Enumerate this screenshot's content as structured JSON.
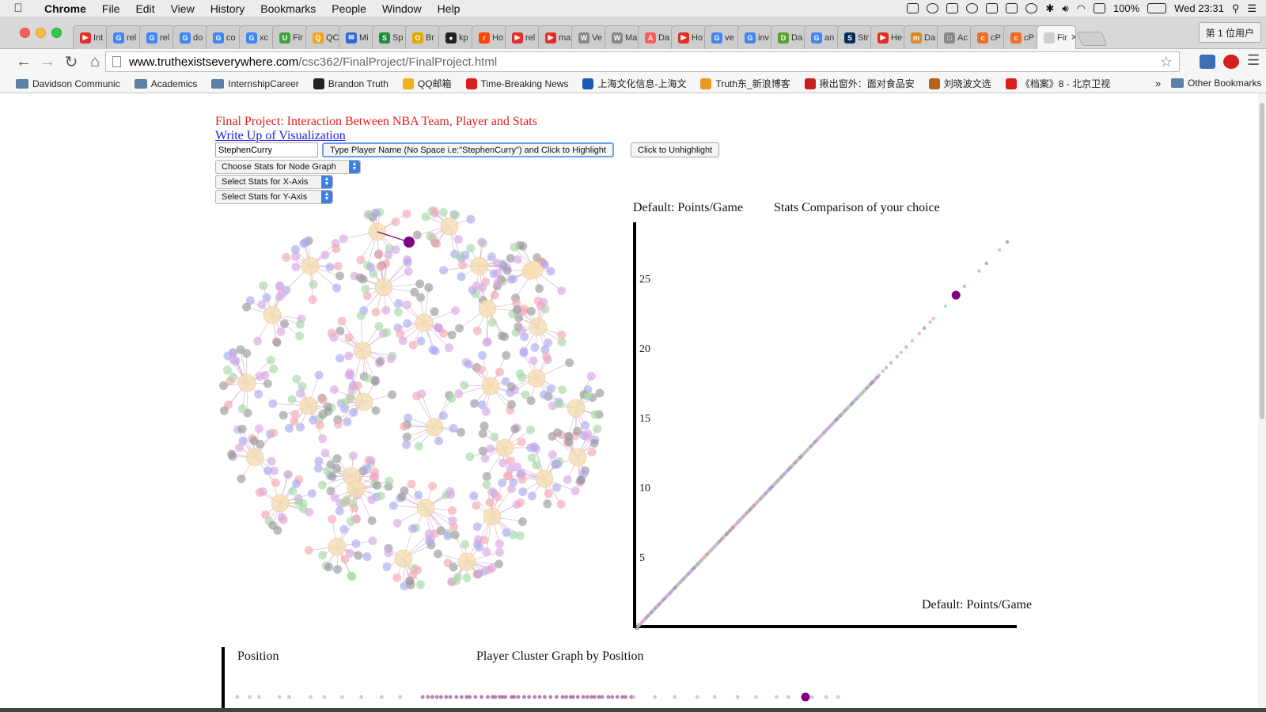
{
  "menubar": {
    "app": "Chrome",
    "items": [
      "File",
      "Edit",
      "View",
      "History",
      "Bookmarks",
      "People",
      "Window",
      "Help"
    ],
    "battery": "100%",
    "clock": "Wed 23:31"
  },
  "tabs": [
    {
      "label": "Int",
      "color": "#e52d27",
      "glyph": "▶"
    },
    {
      "label": "rel",
      "color": "#4285f4",
      "glyph": "G"
    },
    {
      "label": "rel",
      "color": "#4285f4",
      "glyph": "G"
    },
    {
      "label": "do",
      "color": "#4285f4",
      "glyph": "G"
    },
    {
      "label": "co",
      "color": "#4285f4",
      "glyph": "G"
    },
    {
      "label": "xc",
      "color": "#4285f4",
      "glyph": "G"
    },
    {
      "label": "Fir",
      "color": "#3fa33f",
      "glyph": "U"
    },
    {
      "label": "QC",
      "color": "#f2a51a",
      "glyph": "Q"
    },
    {
      "label": "Mi",
      "color": "#2e6bd6",
      "glyph": "✉"
    },
    {
      "label": "Sp",
      "color": "#1e8e3e",
      "glyph": "S"
    },
    {
      "label": "Br",
      "color": "#e0a800",
      "glyph": "O"
    },
    {
      "label": "kp",
      "color": "#222222",
      "glyph": "●"
    },
    {
      "label": "Ho",
      "color": "#ff4500",
      "glyph": "r"
    },
    {
      "label": "rel",
      "color": "#e52d27",
      "glyph": "▶"
    },
    {
      "label": "ma",
      "color": "#e52d27",
      "glyph": "▶"
    },
    {
      "label": "Ve",
      "color": "#888888",
      "glyph": "W"
    },
    {
      "label": "Ma",
      "color": "#888888",
      "glyph": "W"
    },
    {
      "label": "Da",
      "color": "#ff5a5f",
      "glyph": "A"
    },
    {
      "label": "Ho",
      "color": "#e52d27",
      "glyph": "▶"
    },
    {
      "label": "ve",
      "color": "#4285f4",
      "glyph": "G"
    },
    {
      "label": "inv",
      "color": "#4285f4",
      "glyph": "G"
    },
    {
      "label": "Da",
      "color": "#5aa02c",
      "glyph": "D"
    },
    {
      "label": "an",
      "color": "#4285f4",
      "glyph": "G"
    },
    {
      "label": "Str",
      "color": "#0b2a5a",
      "glyph": "S"
    },
    {
      "label": "He",
      "color": "#e52d27",
      "glyph": "▶"
    },
    {
      "label": "Da",
      "color": "#d98a2b",
      "glyph": "m"
    },
    {
      "label": "Ac",
      "color": "#888888",
      "glyph": "□"
    },
    {
      "label": "cP",
      "color": "#f06c1e",
      "glyph": "c"
    },
    {
      "label": "cP",
      "color": "#f06c1e",
      "glyph": "c"
    },
    {
      "label": "Fir",
      "color": "#cfcfcf",
      "glyph": ""
    }
  ],
  "profile": "第 1 位用户",
  "address": {
    "domain": "www.truthexistseverywhere.com",
    "path": "/csc362/FinalProject/FinalProject.html"
  },
  "bookmarks": [
    {
      "label": "Davidson Communic",
      "type": "folder"
    },
    {
      "label": "Academics",
      "type": "folder"
    },
    {
      "label": "InternshipCareer",
      "type": "folder"
    },
    {
      "label": "Brandon Truth",
      "type": "site",
      "color": "#222222"
    },
    {
      "label": "QQ邮箱",
      "type": "site",
      "color": "#f2b01e"
    },
    {
      "label": "Time-Breaking News",
      "type": "site",
      "color": "#d81e1e"
    },
    {
      "label": "上海文化信息-上海文",
      "type": "site",
      "color": "#1e5ab4"
    },
    {
      "label": "Truth东_新浪博客",
      "type": "site",
      "color": "#e89a1e"
    },
    {
      "label": "揪出窗外：面对食品安",
      "type": "site",
      "color": "#c81e1e"
    },
    {
      "label": "刘晓波文选",
      "type": "site",
      "color": "#b4641e"
    },
    {
      "label": "《档案》8 - 北京卫视",
      "type": "site",
      "color": "#d81e1e"
    }
  ],
  "bookmarks_more": "»",
  "bookmarks_other": "Other Bookmarks",
  "page": {
    "title": "Final Project: Interaction Between NBA Team, Player and Stats",
    "writeup_link": "Write Up of Visualization",
    "player_input_value": "StephenCurry",
    "highlight_button": "Type Player Name (No Space i.e:\"StephenCurry\") and Click to Highlight",
    "unhighlight_button": "Click to Unhighlight",
    "node_select": "Choose Stats for Node Graph",
    "x_select": "Select Stats for X-Axis",
    "y_select": "Select Stats for Y-Axis"
  },
  "colors": {
    "title_red": "#e02020",
    "link_blue": "#1a1ae6",
    "highlight_purple": "#800080",
    "team_node": "#f5deb3",
    "player_colors": [
      "#aaaaee",
      "#f4a9b0",
      "#a8d8a8",
      "#999999",
      "#d7a9e3"
    ]
  },
  "chart_data": [
    {
      "type": "network",
      "description_id": "node-graph",
      "node_groups": {
        "team_nodes": 30,
        "player_colors_by_position": [
          "#aaaaee",
          "#f4a9b0",
          "#a8d8a8",
          "#999999",
          "#d7a9e3"
        ]
      },
      "highlighted_player": "StephenCurry"
    },
    {
      "type": "scatter",
      "title": "Stats Comparison of your choice",
      "ylabel": "Default: Points/Game",
      "xlabel": "Default: Points/Game",
      "xlim": [
        0,
        29
      ],
      "ylim": [
        0,
        29
      ],
      "x_ticks": [
        0,
        5,
        10,
        15,
        20,
        25
      ],
      "y_ticks": [
        5,
        10,
        15,
        20,
        25
      ],
      "points_on_identity_line_to": 28.2,
      "highlighted_point": {
        "x": 23.8,
        "y": 23.8
      }
    },
    {
      "type": "scatter",
      "title": "Player Cluster Graph by Position",
      "ylabel": "Position"
    }
  ]
}
